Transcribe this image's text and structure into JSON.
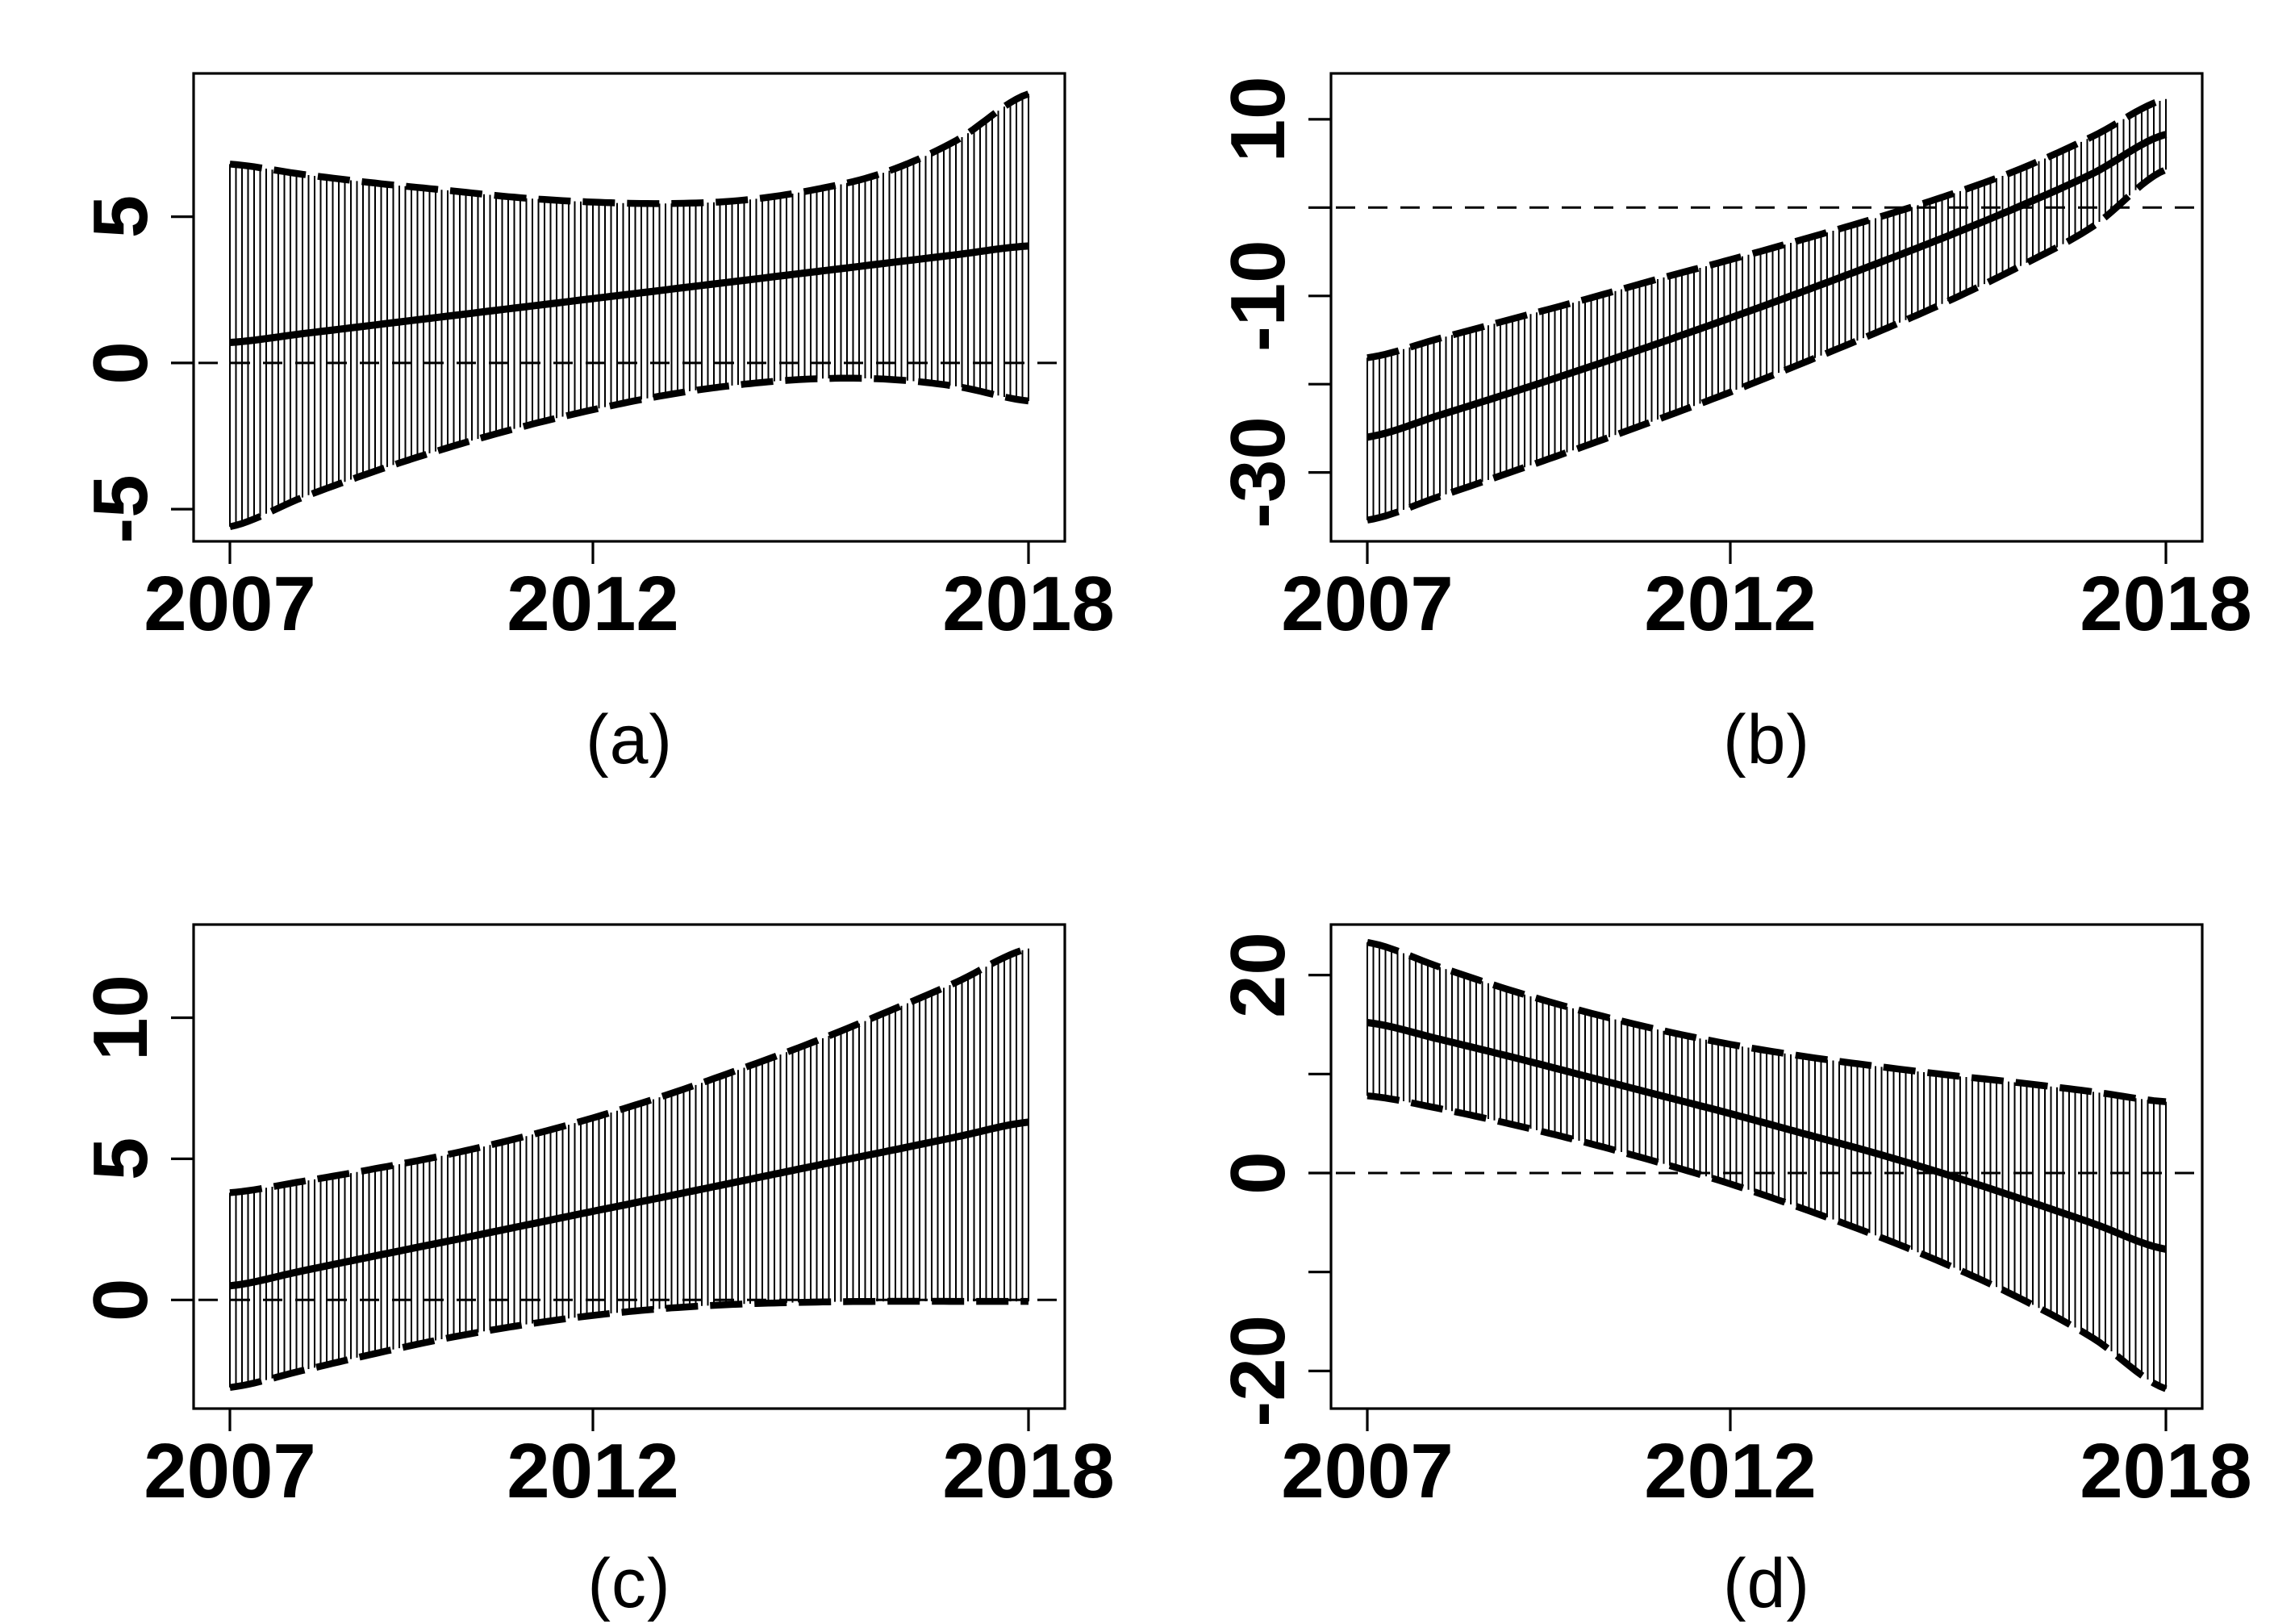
{
  "figure": {
    "background": "#ffffff",
    "ink_color": "#000000",
    "description": "Four-panel trend figure: solid estimate line, dashed 95% confidence envelopes with vertical monthly interval hatching, dashed horizontal zero reference line",
    "panel_order": [
      "a",
      "b",
      "c",
      "d"
    ]
  },
  "chart_data": [
    {
      "id": "a",
      "caption": "(a)",
      "type": "line",
      "grid": false,
      "legend": "none",
      "xlim": [
        2006.5,
        2018.5
      ],
      "ylim": [
        -6.1,
        9.9
      ],
      "x_ticks": [
        {
          "value": 2007,
          "label": "2007"
        },
        {
          "value": 2012,
          "label": "2012"
        },
        {
          "value": 2018,
          "label": "2018"
        }
      ],
      "y_ticks": [
        {
          "value": -5,
          "label": "-5"
        },
        {
          "value": 0,
          "label": "0"
        },
        {
          "value": 5,
          "label": "5"
        }
      ],
      "zero_line": 0,
      "years": [
        2007,
        2008,
        2009,
        2010,
        2011,
        2012,
        2013,
        2014,
        2015,
        2016,
        2017,
        2018
      ],
      "series": [
        {
          "name": "estimate",
          "line": "solid",
          "values": [
            0.7,
            1.0,
            1.3,
            1.6,
            1.9,
            2.2,
            2.5,
            2.8,
            3.1,
            3.4,
            3.7,
            4.0
          ]
        },
        {
          "name": "upper-ci",
          "line": "dashed",
          "values": [
            6.8,
            6.45,
            6.15,
            5.9,
            5.65,
            5.5,
            5.45,
            5.55,
            5.9,
            6.5,
            7.6,
            9.2
          ]
        },
        {
          "name": "lower-ci",
          "line": "dashed",
          "values": [
            -5.6,
            -4.6,
            -3.7,
            -2.9,
            -2.2,
            -1.6,
            -1.1,
            -0.75,
            -0.55,
            -0.55,
            -0.8,
            -1.3
          ]
        }
      ],
      "hatch": {
        "style": "vertical-bars",
        "frequency": "monthly"
      }
    },
    {
      "id": "b",
      "caption": "(b)",
      "type": "line",
      "grid": false,
      "legend": "none",
      "xlim": [
        2006.5,
        2018.5
      ],
      "ylim": [
        -37.8,
        15.2
      ],
      "x_ticks": [
        {
          "value": 2007,
          "label": "2007"
        },
        {
          "value": 2012,
          "label": "2012"
        },
        {
          "value": 2018,
          "label": "2018"
        }
      ],
      "y_ticks": [
        {
          "value": -30,
          "label": "-30"
        },
        {
          "value": -20,
          "label": ""
        },
        {
          "value": -10,
          "label": "-10"
        },
        {
          "value": 0,
          "label": ""
        },
        {
          "value": 10,
          "label": "10"
        }
      ],
      "zero_line": 0,
      "years": [
        2007,
        2008,
        2009,
        2010,
        2011,
        2012,
        2013,
        2014,
        2015,
        2016,
        2017,
        2018
      ],
      "series": [
        {
          "name": "estimate",
          "line": "solid",
          "values": [
            -26.0,
            -23.5,
            -20.9,
            -18.2,
            -15.4,
            -12.5,
            -9.5,
            -6.4,
            -3.2,
            0.2,
            3.9,
            8.3
          ]
        },
        {
          "name": "upper-ci",
          "line": "dashed",
          "values": [
            -17.0,
            -14.8,
            -12.6,
            -10.4,
            -8.1,
            -5.9,
            -3.6,
            -1.2,
            1.4,
            4.4,
            8.1,
            12.3
          ]
        },
        {
          "name": "lower-ci",
          "line": "dashed",
          "values": [
            -35.4,
            -32.7,
            -29.9,
            -27.0,
            -24.0,
            -20.9,
            -17.6,
            -14.2,
            -10.6,
            -6.6,
            -2.1,
            4.3
          ]
        }
      ],
      "hatch": {
        "style": "vertical-bars",
        "frequency": "monthly"
      }
    },
    {
      "id": "c",
      "caption": "(c)",
      "type": "line",
      "grid": false,
      "legend": "none",
      "xlim": [
        2006.5,
        2018.5
      ],
      "ylim": [
        -3.85,
        13.3
      ],
      "x_ticks": [
        {
          "value": 2007,
          "label": "2007"
        },
        {
          "value": 2012,
          "label": "2012"
        },
        {
          "value": 2018,
          "label": "2018"
        }
      ],
      "y_ticks": [
        {
          "value": 0,
          "label": "0"
        },
        {
          "value": 5,
          "label": "5"
        },
        {
          "value": 10,
          "label": "10"
        }
      ],
      "zero_line": 0,
      "years": [
        2007,
        2008,
        2009,
        2010,
        2011,
        2012,
        2013,
        2014,
        2015,
        2016,
        2017,
        2018
      ],
      "series": [
        {
          "name": "estimate",
          "line": "solid",
          "values": [
            0.5,
            1.03,
            1.56,
            2.08,
            2.61,
            3.14,
            3.66,
            4.19,
            4.72,
            5.24,
            5.77,
            6.3
          ]
        },
        {
          "name": "upper-ci",
          "line": "dashed",
          "values": [
            3.8,
            4.2,
            4.65,
            5.15,
            5.75,
            6.45,
            7.25,
            8.15,
            9.1,
            10.15,
            11.25,
            12.45
          ]
        },
        {
          "name": "lower-ci",
          "line": "dashed",
          "values": [
            -3.1,
            -2.5,
            -1.9,
            -1.35,
            -0.9,
            -0.55,
            -0.3,
            -0.15,
            -0.08,
            -0.05,
            -0.05,
            -0.05
          ]
        }
      ],
      "hatch": {
        "style": "vertical-bars",
        "frequency": "monthly"
      }
    },
    {
      "id": "d",
      "caption": "(d)",
      "type": "line",
      "grid": false,
      "legend": "none",
      "xlim": [
        2006.5,
        2018.5
      ],
      "ylim": [
        -23.8,
        25.1
      ],
      "x_ticks": [
        {
          "value": 2007,
          "label": "2007"
        },
        {
          "value": 2012,
          "label": "2012"
        },
        {
          "value": 2018,
          "label": "2018"
        }
      ],
      "y_ticks": [
        {
          "value": -20,
          "label": "-20"
        },
        {
          "value": -10,
          "label": ""
        },
        {
          "value": 0,
          "label": "0"
        },
        {
          "value": 10,
          "label": ""
        },
        {
          "value": 20,
          "label": "20"
        }
      ],
      "zero_line": 0,
      "years": [
        2007,
        2008,
        2009,
        2010,
        2011,
        2012,
        2013,
        2014,
        2015,
        2016,
        2017,
        2018
      ],
      "series": [
        {
          "name": "estimate",
          "line": "solid",
          "values": [
            15.2,
            13.5,
            11.7,
            9.8,
            7.9,
            6.0,
            4.0,
            2.0,
            -0.2,
            -2.6,
            -5.1,
            -7.7
          ]
        },
        {
          "name": "upper-ci",
          "line": "dashed",
          "values": [
            23.3,
            20.8,
            18.4,
            16.3,
            14.5,
            13.0,
            11.8,
            10.8,
            9.9,
            9.1,
            8.2,
            7.2
          ]
        },
        {
          "name": "lower-ci",
          "line": "dashed",
          "values": [
            7.8,
            6.5,
            4.9,
            3.1,
            1.1,
            -1.1,
            -3.6,
            -6.3,
            -9.3,
            -12.7,
            -16.7,
            -21.8
          ]
        }
      ],
      "hatch": {
        "style": "vertical-bars",
        "frequency": "monthly"
      }
    }
  ]
}
